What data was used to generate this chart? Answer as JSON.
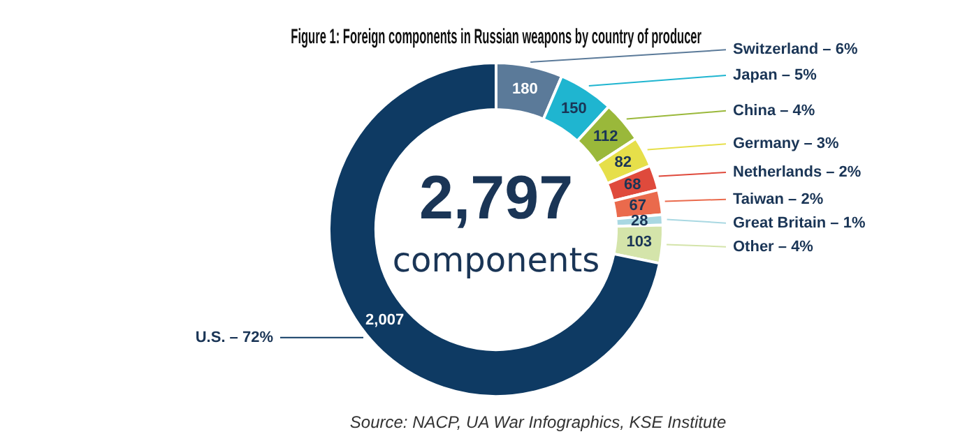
{
  "chart_data": {
    "type": "donut",
    "title": "Figure 1: Foreign components in Russian weapons by country of producer",
    "categories": [
      "Switzerland – 6%",
      "Japan – 5%",
      "China – 4%",
      "Germany – 3%",
      "Netherlands – 2%",
      "Taiwan – 2%",
      "Great Britain – 1%",
      "Other – 4%",
      "U.S. – 72%"
    ],
    "values": [
      180,
      150,
      112,
      82,
      68,
      67,
      28,
      103,
      2007
    ],
    "colors": [
      "#5b7a99",
      "#1fb5d0",
      "#9ab83a",
      "#e6df4a",
      "#df4a3c",
      "#ea6a4c",
      "#a9d8e2",
      "#d4e4aa",
      "#0e3a63"
    ],
    "value_labels": [
      "180",
      "150",
      "112",
      "82",
      "68",
      "67",
      "28",
      "103",
      "2,007"
    ],
    "legend": false,
    "annotations": [
      "2,797",
      "components",
      "Source: NACP, UA War Infographics, KSE Institute"
    ]
  }
}
